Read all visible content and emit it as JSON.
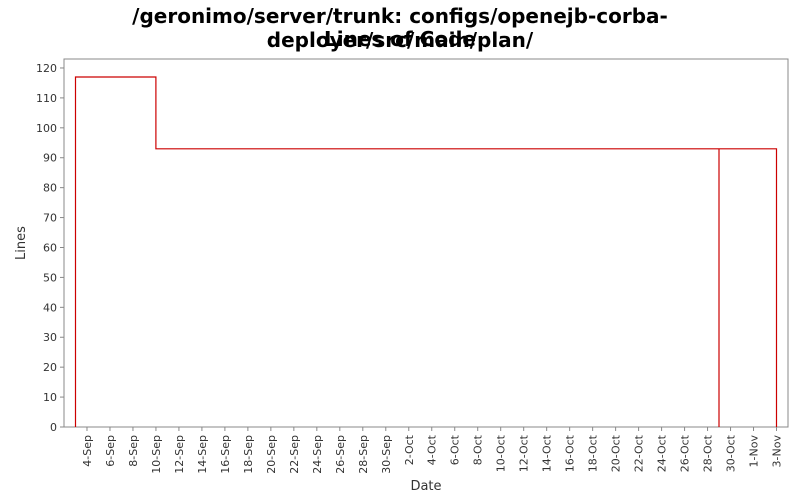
{
  "chart_data": {
    "type": "line",
    "title_line1": "/geronimo/server/trunk: configs/openejb-corba-deployer/src/main/plan/",
    "title_line2": "Lines of Code",
    "xlabel": "Date",
    "ylabel": "Lines",
    "ylim": [
      0,
      123
    ],
    "yticks": [
      0,
      10,
      20,
      30,
      40,
      50,
      60,
      70,
      80,
      90,
      100,
      110,
      120
    ],
    "x_start": "2-Sep",
    "x_end": "4-Nov",
    "xticks": [
      "4-Sep",
      "6-Sep",
      "8-Sep",
      "10-Sep",
      "12-Sep",
      "14-Sep",
      "16-Sep",
      "18-Sep",
      "20-Sep",
      "22-Sep",
      "24-Sep",
      "26-Sep",
      "28-Sep",
      "30-Sep",
      "2-Oct",
      "4-Oct",
      "6-Oct",
      "8-Oct",
      "10-Oct",
      "12-Oct",
      "14-Oct",
      "16-Oct",
      "18-Oct",
      "20-Oct",
      "22-Oct",
      "24-Oct",
      "26-Oct",
      "28-Oct",
      "30-Oct",
      "1-Nov",
      "3-Nov"
    ],
    "series": [
      {
        "color": "#cc0000",
        "step": true,
        "points": [
          {
            "x": "3-Sep",
            "y": 0
          },
          {
            "x": "3-Sep",
            "y": 117
          },
          {
            "x": "10-Sep",
            "y": 117
          },
          {
            "x": "10-Sep",
            "y": 93
          },
          {
            "x": "29-Oct",
            "y": 93
          },
          {
            "x": "29-Oct",
            "y": 0
          },
          {
            "x": "29-Oct",
            "y": 93
          },
          {
            "x": "3-Nov",
            "y": 93
          },
          {
            "x": "3-Nov",
            "y": 0
          }
        ]
      }
    ],
    "grid": false
  }
}
